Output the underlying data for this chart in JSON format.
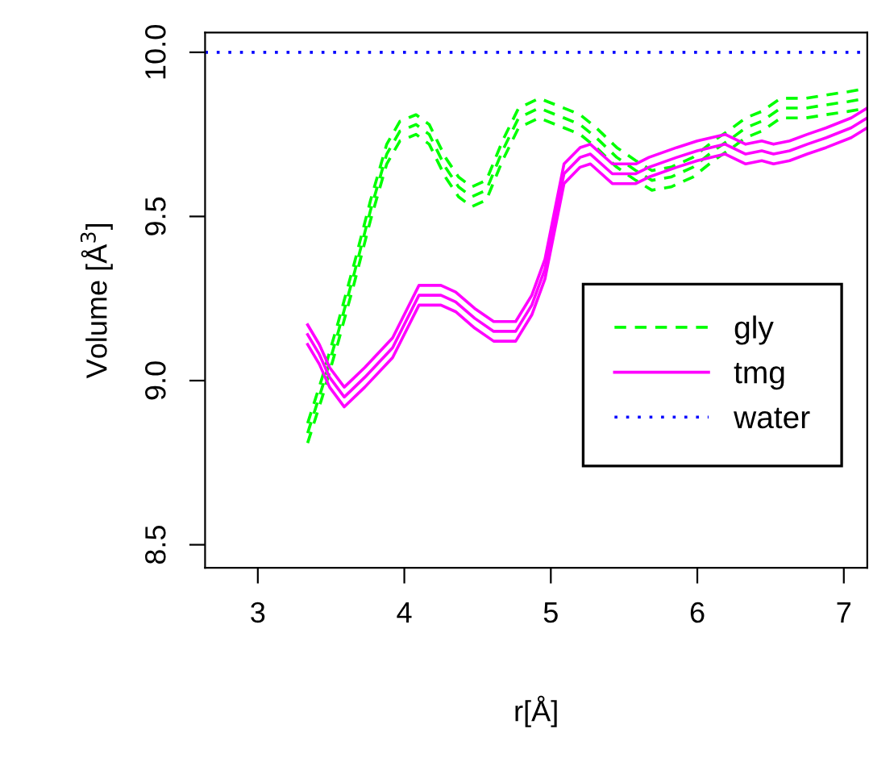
{
  "chart_data": {
    "type": "line",
    "xlabel": "r[Å]",
    "ylabel": "Volume [Å$^{3}$]",
    "xlim": [
      2.64,
      7.16
    ],
    "xticks": [
      3,
      4,
      5,
      6,
      7
    ],
    "ylim": [
      8.43,
      10.06
    ],
    "yticks": [
      {
        "value": 8.5,
        "label": "8.5"
      },
      {
        "value": 9.0,
        "label": "9.0"
      },
      {
        "value": 9.5,
        "label": "9.5"
      },
      {
        "value": 10.0,
        "label": "10.0"
      }
    ],
    "grid": false,
    "legend": "right",
    "marker": "none",
    "series": [
      {
        "name": "gly",
        "color": "#00ff00",
        "line_style": "dashed",
        "x": [
          3.34,
          3.44,
          3.55,
          3.66,
          3.77,
          3.88,
          3.97,
          4.08,
          4.17,
          4.28,
          4.37,
          4.46,
          4.56,
          4.67,
          4.78,
          4.92,
          5.09,
          5.2,
          5.31,
          5.45,
          5.58,
          5.69,
          5.82,
          5.97,
          6.11,
          6.24,
          6.33,
          6.44,
          6.57,
          6.74,
          6.88,
          7.03,
          7.16
        ],
        "values": [
          8.84,
          8.98,
          9.15,
          9.33,
          9.52,
          9.69,
          9.76,
          9.78,
          9.75,
          9.65,
          9.59,
          9.56,
          9.58,
          9.7,
          9.8,
          9.83,
          9.8,
          9.78,
          9.74,
          9.68,
          9.64,
          9.61,
          9.62,
          9.65,
          9.7,
          9.74,
          9.77,
          9.79,
          9.83,
          9.83,
          9.84,
          9.85,
          9.86
        ]
      },
      {
        "color": "#00ff00",
        "line_style": "dashed",
        "x": [
          3.34,
          3.44,
          3.55,
          3.66,
          3.77,
          3.88,
          3.97,
          4.08,
          4.17,
          4.28,
          4.37,
          4.46,
          4.56,
          4.67,
          4.78,
          4.92,
          5.09,
          5.2,
          5.31,
          5.45,
          5.58,
          5.69,
          5.82,
          5.97,
          6.11,
          6.24,
          6.33,
          6.44,
          6.57,
          6.74,
          6.88,
          7.03,
          7.16
        ],
        "values": [
          8.87,
          9.01,
          9.18,
          9.36,
          9.55,
          9.72,
          9.79,
          9.81,
          9.78,
          9.68,
          9.62,
          9.59,
          9.61,
          9.73,
          9.83,
          9.86,
          9.83,
          9.81,
          9.77,
          9.71,
          9.67,
          9.64,
          9.65,
          9.68,
          9.73,
          9.77,
          9.8,
          9.82,
          9.86,
          9.86,
          9.87,
          9.88,
          9.89
        ]
      },
      {
        "color": "#00ff00",
        "line_style": "dashed",
        "x": [
          3.34,
          3.44,
          3.55,
          3.66,
          3.77,
          3.88,
          3.97,
          4.08,
          4.17,
          4.28,
          4.37,
          4.46,
          4.56,
          4.67,
          4.78,
          4.92,
          5.09,
          5.2,
          5.31,
          5.45,
          5.58,
          5.69,
          5.82,
          5.97,
          6.11,
          6.24,
          6.33,
          6.44,
          6.57,
          6.74,
          6.88,
          7.03,
          7.16
        ],
        "values": [
          8.81,
          8.95,
          9.12,
          9.3,
          9.49,
          9.66,
          9.73,
          9.75,
          9.72,
          9.62,
          9.56,
          9.53,
          9.55,
          9.67,
          9.77,
          9.8,
          9.77,
          9.75,
          9.71,
          9.65,
          9.61,
          9.58,
          9.59,
          9.62,
          9.67,
          9.71,
          9.74,
          9.76,
          9.8,
          9.8,
          9.81,
          9.82,
          9.83
        ]
      },
      {
        "name": "tmg",
        "color": "#ff00ff",
        "line_style": "solid",
        "x": [
          3.34,
          3.42,
          3.49,
          3.59,
          3.73,
          3.92,
          4.1,
          4.25,
          4.35,
          4.48,
          4.61,
          4.76,
          4.87,
          4.96,
          5.09,
          5.2,
          5.27,
          5.42,
          5.58,
          5.67,
          5.86,
          6.0,
          6.19,
          6.33,
          6.44,
          6.52,
          6.63,
          6.75,
          6.88,
          7.05,
          7.16
        ],
        "values": [
          9.14,
          9.08,
          9.01,
          8.95,
          9.01,
          9.1,
          9.26,
          9.26,
          9.24,
          9.19,
          9.15,
          9.15,
          9.23,
          9.34,
          9.63,
          9.68,
          9.69,
          9.63,
          9.63,
          9.65,
          9.68,
          9.7,
          9.72,
          9.69,
          9.7,
          9.69,
          9.7,
          9.72,
          9.74,
          9.77,
          9.8
        ]
      },
      {
        "color": "#ff00ff",
        "line_style": "solid",
        "x": [
          3.34,
          3.42,
          3.49,
          3.59,
          3.73,
          3.92,
          4.1,
          4.25,
          4.35,
          4.48,
          4.61,
          4.76,
          4.87,
          4.96,
          5.09,
          5.2,
          5.27,
          5.42,
          5.58,
          5.67,
          5.86,
          6.0,
          6.19,
          6.33,
          6.44,
          6.52,
          6.63,
          6.75,
          6.88,
          7.05,
          7.16
        ],
        "values": [
          9.17,
          9.11,
          9.04,
          8.98,
          9.04,
          9.13,
          9.29,
          9.29,
          9.27,
          9.22,
          9.18,
          9.18,
          9.26,
          9.37,
          9.66,
          9.71,
          9.72,
          9.66,
          9.66,
          9.68,
          9.71,
          9.73,
          9.75,
          9.72,
          9.73,
          9.72,
          9.73,
          9.75,
          9.77,
          9.8,
          9.83
        ]
      },
      {
        "color": "#ff00ff",
        "line_style": "solid",
        "x": [
          3.34,
          3.42,
          3.49,
          3.59,
          3.73,
          3.92,
          4.1,
          4.25,
          4.35,
          4.48,
          4.61,
          4.76,
          4.87,
          4.96,
          5.09,
          5.2,
          5.27,
          5.42,
          5.58,
          5.67,
          5.86,
          6.0,
          6.19,
          6.33,
          6.44,
          6.52,
          6.63,
          6.75,
          6.88,
          7.05,
          7.16
        ],
        "values": [
          9.11,
          9.05,
          8.98,
          8.92,
          8.98,
          9.07,
          9.23,
          9.23,
          9.21,
          9.16,
          9.12,
          9.12,
          9.2,
          9.31,
          9.6,
          9.65,
          9.66,
          9.6,
          9.6,
          9.62,
          9.65,
          9.67,
          9.69,
          9.66,
          9.67,
          9.66,
          9.67,
          9.69,
          9.71,
          9.74,
          9.77
        ]
      },
      {
        "name": "water",
        "color": "#0000ff",
        "line_style": "dotted",
        "x": [
          2.64,
          7.16
        ],
        "values": [
          10.0,
          10.0
        ]
      }
    ]
  }
}
